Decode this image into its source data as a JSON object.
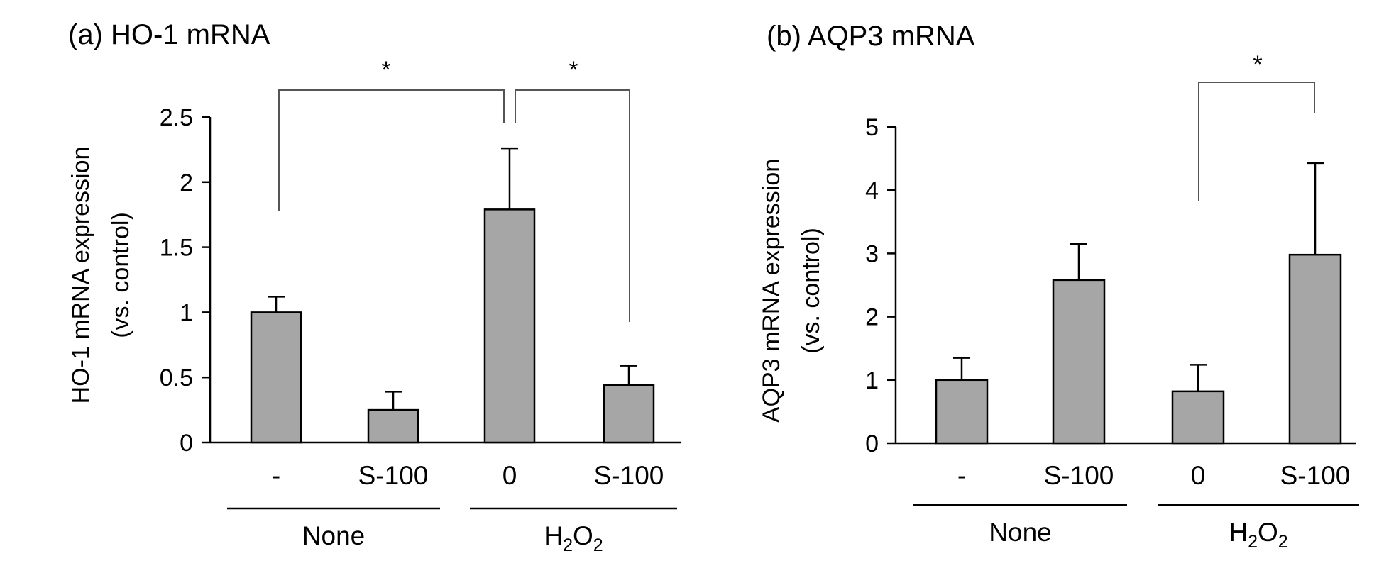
{
  "chart_data": [
    {
      "type": "bar",
      "title": "(a) HO-1 mRNA",
      "ylabel_line1": "HO-1 mRNA expression",
      "ylabel_line2": "(vs. control)",
      "ylim": [
        0,
        2.5
      ],
      "yticks": [
        "0",
        "0.5",
        "1",
        "1.5",
        "2",
        "2.5"
      ],
      "categories": [
        "-",
        "S-100",
        "0",
        "S-100"
      ],
      "values": [
        1.0,
        0.25,
        1.79,
        0.44
      ],
      "errors": [
        0.12,
        0.14,
        0.47,
        0.15
      ],
      "groups": [
        {
          "label": "None",
          "base": "None",
          "sub": ""
        },
        {
          "label": "H2O2",
          "base": "H",
          "sub": "2",
          "mid": "O",
          "sub2": "2"
        }
      ],
      "significance": [
        {
          "from": 0,
          "to": 2,
          "label": "*"
        },
        {
          "from": 2,
          "to": 3,
          "label": "*"
        }
      ]
    },
    {
      "type": "bar",
      "title": "(b) AQP3 mRNA",
      "ylabel_line1": "AQP3 mRNA expression",
      "ylabel_line2": "(vs. control)",
      "ylim": [
        0,
        5
      ],
      "yticks": [
        "0",
        "1",
        "2",
        "3",
        "4",
        "5"
      ],
      "categories": [
        "-",
        "S-100",
        "0",
        "S-100"
      ],
      "values": [
        1.0,
        2.58,
        0.82,
        2.98
      ],
      "errors": [
        0.35,
        0.57,
        0.42,
        1.45
      ],
      "groups": [
        {
          "label": "None",
          "base": "None",
          "sub": ""
        },
        {
          "label": "H2O2",
          "base": "H",
          "sub": "2",
          "mid": "O",
          "sub2": "2"
        }
      ],
      "significance": [
        {
          "from": 2,
          "to": 3,
          "label": "*"
        }
      ]
    }
  ]
}
